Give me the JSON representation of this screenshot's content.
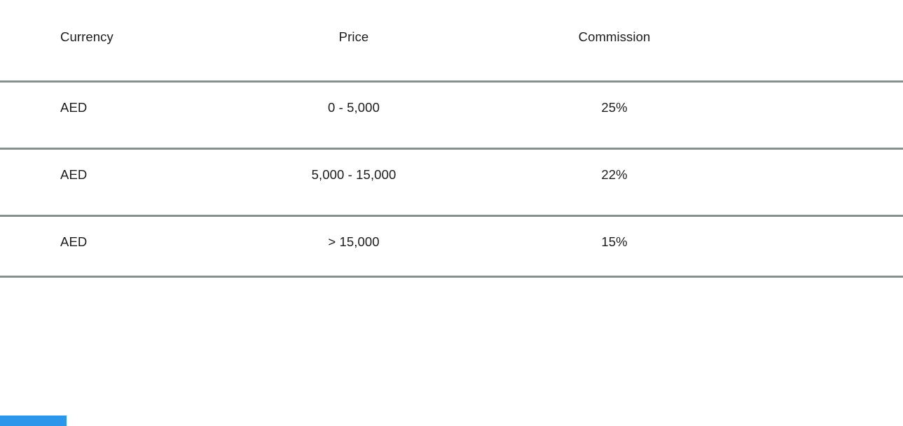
{
  "table": {
    "columns": [
      {
        "key": "currency",
        "label": "Currency"
      },
      {
        "key": "price",
        "label": "Price"
      },
      {
        "key": "commission",
        "label": "Commission"
      }
    ],
    "rows": [
      {
        "currency": "AED",
        "price": "0 - 5,000",
        "commission": "25%"
      },
      {
        "currency": "AED",
        "price": "5,000 - 15,000",
        "commission": "22%"
      },
      {
        "currency": "AED",
        "price": "> 15,000",
        "commission": "15%"
      }
    ]
  },
  "colors": {
    "row_border": "#87918c",
    "text": "#1c1c1e",
    "background": "#ffffff",
    "corner_accent": "#2b96ea"
  }
}
